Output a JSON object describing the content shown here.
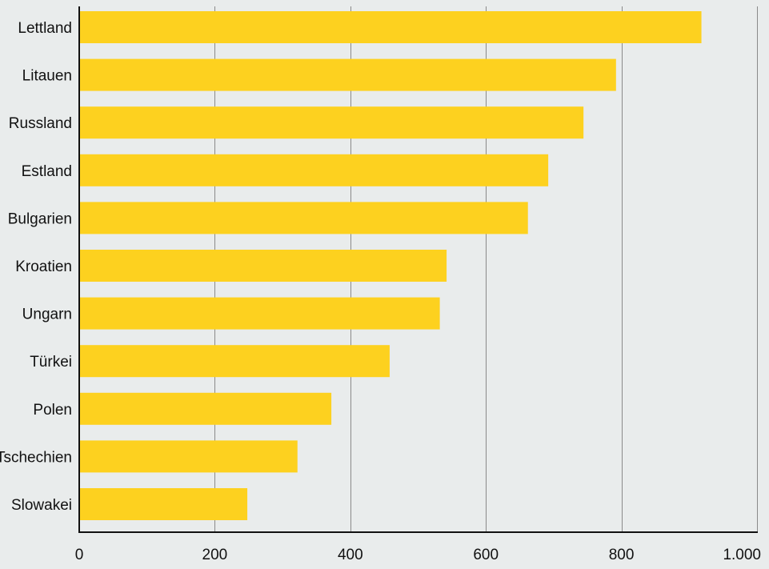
{
  "chart_data": {
    "type": "bar",
    "orientation": "horizontal",
    "title": "",
    "xlabel": "",
    "ylabel": "",
    "categories": [
      "Lettland",
      "Litauen",
      "Russland",
      "Estland",
      "Bulgarien",
      "Kroatien",
      "Ungarn",
      "Türkei",
      "Polen",
      "Tschechien",
      "Slowakei"
    ],
    "values": [
      918,
      792,
      744,
      692,
      662,
      542,
      532,
      458,
      372,
      322,
      248
    ],
    "xlim": [
      0,
      1000
    ],
    "x_ticks": [
      {
        "value": 0,
        "label": "0"
      },
      {
        "value": 200,
        "label": "200"
      },
      {
        "value": 400,
        "label": "400"
      },
      {
        "value": 600,
        "label": "600"
      },
      {
        "value": 800,
        "label": "800"
      },
      {
        "value": 1000,
        "label": "1.000"
      }
    ],
    "grid": "vertical",
    "legend": "none",
    "colors": {
      "background": "#e9ecec",
      "bar": "#fdd11f",
      "grid": "#8a8a8a",
      "axis": "#111111"
    }
  }
}
